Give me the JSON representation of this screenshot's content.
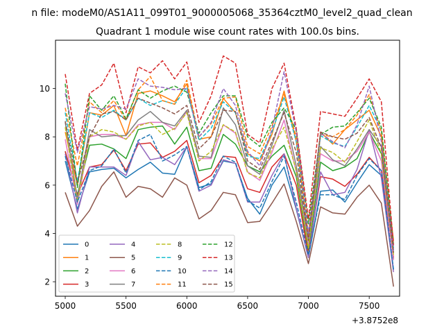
{
  "chart_data": {
    "type": "line",
    "suptitle": "n file: modeM0/AS1A11_099T01_9000005068_35364cztM0_level2_quad_clean",
    "title": "Quadrant 1 module wise count rates with 100.0s bins.",
    "x_offset_label": "+3.8752e8",
    "xlim": [
      4920,
      7750
    ],
    "ylim": [
      1.4,
      12.0
    ],
    "xticks": [
      5000,
      5500,
      6000,
      6500,
      7000,
      7500
    ],
    "yticks": [
      2,
      4,
      6,
      8,
      10
    ],
    "x": [
      5000,
      5100,
      5200,
      5300,
      5400,
      5500,
      5600,
      5700,
      5800,
      5900,
      6000,
      6100,
      6200,
      6300,
      6400,
      6500,
      6600,
      6700,
      6800,
      6900,
      7000,
      7100,
      7200,
      7300,
      7400,
      7500,
      7600,
      7700
    ],
    "legend_location": "lower-left",
    "series": [
      {
        "name": "0",
        "color": "#1f77b4",
        "dash": false,
        "values": [
          7.0,
          5.0,
          6.55,
          6.65,
          6.7,
          6.3,
          6.65,
          6.95,
          6.5,
          6.45,
          7.6,
          5.9,
          6.05,
          7.0,
          6.9,
          5.45,
          4.8,
          6.0,
          6.75,
          5.0,
          3.0,
          5.75,
          5.8,
          5.3,
          6.1,
          6.85,
          6.4,
          2.5
        ]
      },
      {
        "name": "1",
        "color": "#ff7f0e",
        "dash": false,
        "values": [
          8.2,
          6.0,
          9.0,
          8.9,
          9.3,
          8.05,
          9.8,
          9.9,
          9.7,
          9.45,
          10.2,
          7.9,
          8.0,
          9.6,
          9.0,
          7.3,
          7.0,
          8.1,
          9.9,
          7.8,
          3.85,
          8.2,
          7.7,
          8.3,
          8.7,
          9.1,
          8.0,
          3.7
        ]
      },
      {
        "name": "2",
        "color": "#2ca02c",
        "dash": false,
        "values": [
          7.4,
          5.6,
          7.65,
          7.7,
          7.5,
          7.1,
          8.3,
          8.4,
          8.45,
          7.7,
          8.4,
          6.6,
          6.7,
          8.1,
          7.7,
          6.8,
          6.55,
          7.2,
          7.65,
          6.35,
          3.3,
          6.95,
          6.6,
          6.75,
          7.1,
          8.2,
          7.3,
          2.95
        ]
      },
      {
        "name": "3",
        "color": "#d62728",
        "dash": false,
        "values": [
          7.4,
          5.6,
          6.75,
          6.85,
          7.45,
          6.6,
          7.7,
          7.75,
          7.15,
          7.4,
          7.85,
          6.1,
          6.4,
          7.2,
          7.15,
          5.85,
          5.7,
          6.75,
          7.3,
          6.0,
          3.1,
          6.35,
          6.25,
          5.95,
          6.45,
          7.15,
          6.6,
          3.0
        ]
      },
      {
        "name": "4",
        "color": "#9467bd",
        "dash": false,
        "values": [
          7.3,
          4.85,
          6.75,
          6.75,
          6.75,
          6.4,
          7.8,
          7.05,
          7.15,
          6.85,
          7.6,
          5.75,
          6.0,
          7.05,
          6.9,
          5.3,
          5.3,
          6.4,
          7.3,
          5.05,
          3.0,
          6.55,
          5.6,
          5.7,
          6.65,
          8.3,
          6.3,
          2.4
        ]
      },
      {
        "name": "5",
        "color": "#8c564b",
        "dash": false,
        "values": [
          5.7,
          4.3,
          4.95,
          5.95,
          6.55,
          5.5,
          5.95,
          5.85,
          5.5,
          6.3,
          6.0,
          4.6,
          4.95,
          5.7,
          5.6,
          4.45,
          4.5,
          5.25,
          6.05,
          4.5,
          2.75,
          5.1,
          4.85,
          4.8,
          5.5,
          6.0,
          5.25,
          1.8
        ]
      },
      {
        "name": "6",
        "color": "#e377c2",
        "dash": false,
        "values": [
          7.9,
          5.2,
          8.0,
          8.1,
          8.1,
          7.9,
          8.5,
          8.6,
          8.6,
          8.3,
          9.05,
          7.1,
          7.1,
          8.5,
          8.15,
          6.55,
          6.2,
          7.35,
          8.7,
          6.55,
          3.5,
          7.3,
          7.0,
          7.0,
          7.4,
          8.2,
          7.0,
          2.9
        ]
      },
      {
        "name": "7",
        "color": "#7f7f7f",
        "dash": false,
        "values": [
          8.6,
          5.45,
          8.3,
          8.0,
          8.05,
          8.05,
          8.7,
          9.05,
          8.6,
          8.45,
          9.1,
          7.2,
          7.15,
          9.2,
          8.5,
          6.8,
          6.45,
          7.65,
          9.1,
          6.8,
          3.75,
          7.6,
          7.05,
          6.8,
          7.5,
          8.3,
          7.6,
          3.2
        ]
      },
      {
        "name": "8",
        "color": "#bcbd22",
        "dash": true,
        "values": [
          8.4,
          5.3,
          8.0,
          8.3,
          8.2,
          7.9,
          8.45,
          8.6,
          8.1,
          8.35,
          9.0,
          7.0,
          7.4,
          8.5,
          8.2,
          6.5,
          6.3,
          7.5,
          8.4,
          6.6,
          3.4,
          7.55,
          7.35,
          6.95,
          7.8,
          8.7,
          7.3,
          3.1
        ]
      },
      {
        "name": "9",
        "color": "#17becf",
        "dash": true,
        "values": [
          9.0,
          6.15,
          9.0,
          8.8,
          9.1,
          8.7,
          9.6,
          9.3,
          9.5,
          9.35,
          10.05,
          7.85,
          8.35,
          9.45,
          9.0,
          7.2,
          7.1,
          8.2,
          9.65,
          7.8,
          3.9,
          8.05,
          7.75,
          7.6,
          8.4,
          9.3,
          8.25,
          3.4
        ]
      },
      {
        "name": "10",
        "color": "#1f77b4",
        "dash": true,
        "values": [
          7.2,
          5.3,
          6.6,
          6.8,
          7.5,
          6.5,
          7.85,
          8.1,
          7.0,
          7.25,
          7.6,
          5.8,
          6.15,
          7.2,
          6.95,
          5.35,
          5.05,
          6.15,
          7.2,
          5.3,
          3.1,
          5.6,
          5.6,
          5.4,
          6.4,
          7.1,
          6.6,
          2.5
        ]
      },
      {
        "name": "11",
        "color": "#ff7f0e",
        "dash": true,
        "values": [
          9.2,
          6.8,
          9.45,
          9.0,
          9.5,
          8.7,
          9.95,
          10.5,
          9.5,
          9.35,
          10.35,
          8.0,
          8.55,
          9.6,
          9.65,
          7.6,
          7.3,
          8.45,
          9.75,
          8.0,
          3.9,
          8.1,
          8.0,
          8.3,
          8.9,
          9.75,
          8.2,
          3.55
        ]
      },
      {
        "name": "12",
        "color": "#2ca02c",
        "dash": true,
        "values": [
          10.2,
          5.9,
          9.7,
          9.1,
          9.7,
          8.75,
          9.95,
          9.6,
          9.9,
          10.1,
          9.85,
          8.15,
          9.0,
          9.7,
          9.7,
          8.0,
          7.6,
          8.6,
          9.2,
          8.3,
          4.4,
          8.1,
          8.4,
          8.45,
          9.0,
          9.6,
          8.4,
          3.5
        ]
      },
      {
        "name": "13",
        "color": "#d62728",
        "dash": true,
        "values": [
          10.6,
          7.45,
          9.8,
          10.15,
          11.05,
          9.0,
          10.9,
          10.65,
          11.15,
          10.4,
          11.1,
          8.6,
          9.7,
          11.35,
          11.05,
          8.1,
          7.75,
          10.0,
          11.05,
          8.35,
          4.6,
          9.05,
          8.95,
          8.85,
          9.6,
          10.4,
          9.45,
          3.5
        ]
      },
      {
        "name": "14",
        "color": "#9467bd",
        "dash": true,
        "values": [
          9.8,
          7.35,
          9.25,
          9.15,
          9.3,
          9.15,
          10.4,
          10.1,
          10.05,
          9.95,
          10.0,
          8.0,
          8.6,
          10.0,
          9.3,
          7.4,
          6.8,
          8.3,
          10.7,
          8.2,
          4.0,
          8.15,
          7.8,
          7.55,
          8.5,
          10.1,
          7.8,
          3.3
        ]
      },
      {
        "name": "15",
        "color": "#8c564b",
        "dash": true,
        "values": [
          8.65,
          6.1,
          8.0,
          8.95,
          9.05,
          8.7,
          9.6,
          9.4,
          9.2,
          8.95,
          9.3,
          7.5,
          8.0,
          9.1,
          9.05,
          7.0,
          6.65,
          7.8,
          9.0,
          7.35,
          3.7,
          8.2,
          8.0,
          7.9,
          8.15,
          8.8,
          7.55,
          3.2
        ]
      }
    ]
  }
}
